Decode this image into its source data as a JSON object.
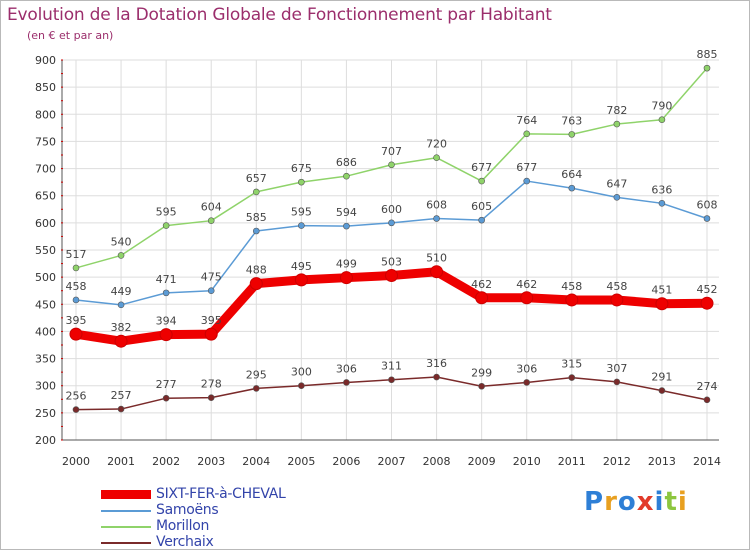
{
  "title": "Evolution de la Dotation Globale de Fonctionnement par Habitant",
  "subtitle": "(en € et par an)",
  "logo_text": "Proxiti",
  "colors": {
    "title": "#9b2e6c",
    "sixt": "#ee0000",
    "samoens": "#5b9bd5",
    "morillon": "#8fd36a",
    "verchaix": "#7a2a2a",
    "grid": "#dddddd"
  },
  "chart_data": {
    "type": "line",
    "title": "Evolution de la Dotation Globale de Fonctionnement par Habitant",
    "subtitle": "(en € et par an)",
    "x": [
      "2000",
      "2001",
      "2002",
      "2003",
      "2004",
      "2005",
      "2006",
      "2007",
      "2008",
      "2009",
      "2010",
      "2011",
      "2012",
      "2013",
      "2014"
    ],
    "ylim": [
      200,
      900
    ],
    "yticks": [
      200,
      250,
      300,
      350,
      400,
      450,
      500,
      550,
      600,
      650,
      700,
      750,
      800,
      850,
      900
    ],
    "grid": true,
    "legend_position": "bottom-left",
    "series": [
      {
        "name": "SIXT-FER-à-CHEVAL",
        "color": "#ee0000",
        "values": [
          395,
          382,
          394,
          395,
          488,
          495,
          499,
          503,
          510,
          462,
          462,
          458,
          458,
          451,
          452
        ]
      },
      {
        "name": "Samoëns",
        "color": "#5b9bd5",
        "values": [
          458,
          449,
          471,
          475,
          585,
          595,
          594,
          600,
          608,
          605,
          677,
          664,
          647,
          636,
          608
        ]
      },
      {
        "name": "Morillon",
        "color": "#8fd36a",
        "values": [
          517,
          540,
          595,
          604,
          657,
          675,
          686,
          707,
          720,
          677,
          764,
          763,
          782,
          790,
          885
        ]
      },
      {
        "name": "Verchaix",
        "color": "#7a2a2a",
        "values": [
          256,
          257,
          277,
          278,
          295,
          300,
          306,
          311,
          316,
          299,
          306,
          315,
          307,
          291,
          274
        ]
      }
    ]
  }
}
